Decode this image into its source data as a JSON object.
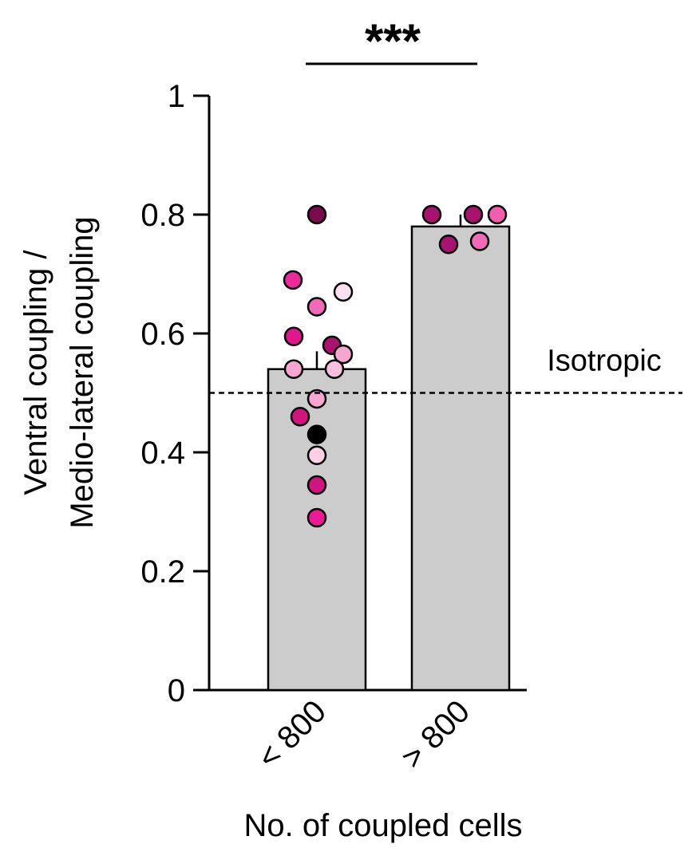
{
  "chart_data": {
    "type": "bar",
    "categories": [
      "< 800",
      "> 800"
    ],
    "values": [
      0.54,
      0.78
    ],
    "error_upper": [
      0.57,
      0.8
    ],
    "points": [
      [
        {
          "y": 0.8,
          "color": "#7a0a4e"
        },
        {
          "y": 0.69,
          "color": "#ec2a9c"
        },
        {
          "y": 0.67,
          "color": "#fde0ef"
        },
        {
          "y": 0.645,
          "color": "#f06ab8"
        },
        {
          "y": 0.595,
          "color": "#e0178a"
        },
        {
          "y": 0.58,
          "color": "#a8136f"
        },
        {
          "y": 0.565,
          "color": "#f7a6d1"
        },
        {
          "y": 0.54,
          "color": "#f7a6d1"
        },
        {
          "y": 0.54,
          "color": "#f9bfdf"
        },
        {
          "y": 0.49,
          "color": "#f7a6d1"
        },
        {
          "y": 0.46,
          "color": "#d0157f"
        },
        {
          "y": 0.43,
          "color": "#000000"
        },
        {
          "y": 0.395,
          "color": "#fbd0e6"
        },
        {
          "y": 0.345,
          "color": "#d0157f"
        },
        {
          "y": 0.29,
          "color": "#ec1a94"
        }
      ],
      [
        {
          "y": 0.8,
          "color": "#a8136f"
        },
        {
          "y": 0.8,
          "color": "#a8136f"
        },
        {
          "y": 0.8,
          "color": "#f25db0"
        },
        {
          "y": 0.75,
          "color": "#a8136f"
        },
        {
          "y": 0.755,
          "color": "#f06ab8"
        }
      ]
    ],
    "reference_line": {
      "y": 0.5,
      "label": "Isotropic",
      "style": "dashed"
    },
    "significance": {
      "label": "***",
      "between": [
        "< 800",
        "> 800"
      ]
    },
    "title": "",
    "xlabel": "No. of coupled cells",
    "ylabel": [
      "Ventral coupling /",
      "Medio-lateral coupling"
    ],
    "ylim": [
      0,
      1
    ],
    "yticks": [
      0,
      0.2,
      0.4,
      0.6,
      0.8,
      1
    ],
    "ytick_labels": [
      "0",
      "0.2",
      "0.4",
      "0.6",
      "0.8",
      "1"
    ],
    "colors": {
      "bar_fill": "#cccccc",
      "bar_edge": "#000000",
      "axis": "#000000"
    },
    "grid": false,
    "legend": "none"
  }
}
